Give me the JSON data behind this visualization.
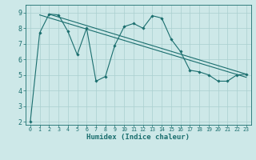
{
  "xlabel": "Humidex (Indice chaleur)",
  "bg_color": "#cde8e8",
  "line_color": "#1a6e6e",
  "grid_color": "#aacfcf",
  "xlim": [
    -0.5,
    23.5
  ],
  "ylim": [
    1.8,
    9.5
  ],
  "xticks": [
    0,
    1,
    2,
    3,
    4,
    5,
    6,
    7,
    8,
    9,
    10,
    11,
    12,
    13,
    14,
    15,
    16,
    17,
    18,
    19,
    20,
    21,
    22,
    23
  ],
  "yticks": [
    2,
    3,
    4,
    5,
    6,
    7,
    8,
    9
  ],
  "main_x": [
    0,
    1,
    2,
    3,
    4,
    5,
    6,
    7,
    8,
    9,
    10,
    11,
    12,
    13,
    14,
    15,
    16,
    17,
    18,
    19,
    20,
    21,
    22,
    23
  ],
  "main_y": [
    2.0,
    7.7,
    8.9,
    8.85,
    7.8,
    6.3,
    8.0,
    4.6,
    4.9,
    6.9,
    8.1,
    8.3,
    8.0,
    8.8,
    8.65,
    7.3,
    6.5,
    5.3,
    5.2,
    5.0,
    4.6,
    4.6,
    5.0,
    5.05
  ],
  "trend1_x": [
    1,
    23
  ],
  "trend1_y": [
    8.85,
    4.85
  ],
  "trend2_x": [
    2,
    23
  ],
  "trend2_y": [
    8.9,
    5.05
  ]
}
